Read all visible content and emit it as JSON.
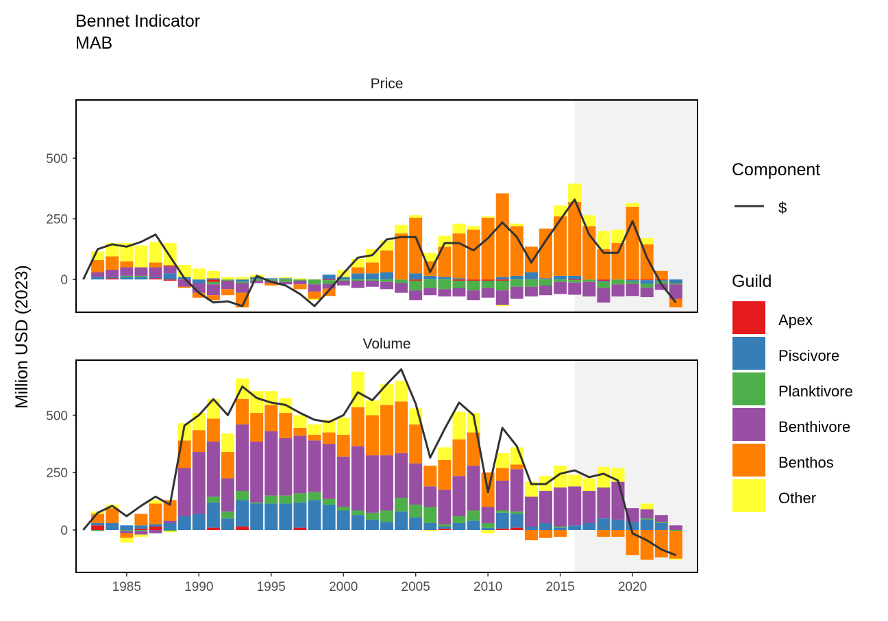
{
  "title": "Bennet Indicator",
  "subtitle": "MAB",
  "colors": {
    "Apex": "#e41a1c",
    "Piscivore": "#377eb8",
    "Planktivore": "#4daf4a",
    "Benthivore": "#984ea3",
    "Benthos": "#ff7f00",
    "Other": "#ffff33",
    "line": "#333333",
    "shade": "#f2f2f2"
  },
  "legend": {
    "component_title": "Component",
    "component_items": [
      "$"
    ],
    "guild_title": "Guild",
    "guild_items": [
      "Apex",
      "Piscivore",
      "Planktivore",
      "Benthivore",
      "Benthos",
      "Other"
    ]
  },
  "chart_data": [
    {
      "type": "bar",
      "panel": "Price",
      "stacked": true,
      "ylabel": "Million USD (2023)",
      "xlim": [
        1981.5,
        2024.5
      ],
      "ylim": [
        -135,
        740
      ],
      "x_ticks": [
        1985,
        1990,
        1995,
        2000,
        2005,
        2010,
        2015,
        2020
      ],
      "y_ticks": [
        0,
        250,
        500
      ],
      "shaded_x": [
        2016,
        2024.5
      ],
      "x": [
        1983,
        1984,
        1985,
        1986,
        1987,
        1988,
        1989,
        1990,
        1991,
        1992,
        1993,
        1994,
        1995,
        1996,
        1997,
        1998,
        1999,
        2000,
        2001,
        2002,
        2003,
        2004,
        2005,
        2006,
        2007,
        2008,
        2009,
        2010,
        2011,
        2012,
        2013,
        2014,
        2015,
        2016,
        2017,
        2018,
        2019,
        2020,
        2021,
        2022,
        2023
      ],
      "series": [
        {
          "name": "Apex",
          "values": [
            0,
            5,
            0,
            0,
            5,
            -5,
            0,
            0,
            -10,
            0,
            0,
            0,
            0,
            0,
            0,
            0,
            -3,
            0,
            0,
            0,
            0,
            0,
            -5,
            0,
            0,
            -5,
            -5,
            -5,
            -5,
            0,
            0,
            0,
            0,
            -3,
            0,
            -5,
            0,
            -3,
            -3,
            -3,
            0
          ]
        },
        {
          "name": "Piscivore",
          "values": [
            10,
            5,
            10,
            10,
            5,
            25,
            10,
            -15,
            5,
            0,
            -10,
            10,
            5,
            5,
            0,
            0,
            20,
            10,
            25,
            25,
            30,
            0,
            25,
            15,
            10,
            5,
            0,
            0,
            10,
            15,
            30,
            5,
            15,
            15,
            0,
            -5,
            0,
            -5,
            -15,
            -5,
            -15
          ]
        },
        {
          "name": "Planktivore",
          "values": [
            0,
            0,
            5,
            5,
            0,
            0,
            0,
            0,
            -10,
            -5,
            -5,
            -5,
            -5,
            -10,
            -5,
            -20,
            -15,
            -5,
            -5,
            -5,
            -10,
            -15,
            -40,
            -35,
            -40,
            -30,
            -40,
            -30,
            -40,
            -30,
            -30,
            -25,
            -10,
            -10,
            -10,
            -25,
            -20,
            -10,
            -15,
            -10,
            -5
          ]
        },
        {
          "name": "Benthivore",
          "values": [
            20,
            30,
            35,
            35,
            40,
            30,
            -30,
            -40,
            -45,
            -35,
            -40,
            -10,
            -10,
            -10,
            -15,
            -30,
            -20,
            -20,
            -30,
            -25,
            -30,
            -40,
            -40,
            -30,
            -30,
            -35,
            -40,
            -40,
            -60,
            -50,
            -40,
            -40,
            -50,
            -50,
            -60,
            -60,
            -50,
            -50,
            -40,
            -25,
            -60
          ]
        },
        {
          "name": "Benthos",
          "values": [
            50,
            55,
            25,
            0,
            20,
            5,
            -5,
            -20,
            -20,
            -25,
            -60,
            0,
            -10,
            0,
            -20,
            -30,
            -30,
            0,
            25,
            45,
            90,
            190,
            230,
            60,
            125,
            185,
            205,
            255,
            345,
            205,
            105,
            205,
            245,
            305,
            220,
            125,
            150,
            300,
            145,
            35,
            -35
          ]
        },
        {
          "name": "Other",
          "values": [
            35,
            55,
            75,
            90,
            85,
            90,
            50,
            45,
            30,
            10,
            10,
            10,
            0,
            5,
            5,
            -5,
            0,
            30,
            35,
            55,
            40,
            35,
            10,
            35,
            45,
            40,
            15,
            5,
            -5,
            10,
            0,
            0,
            45,
            75,
            45,
            75,
            55,
            15,
            25,
            0,
            0
          ]
        }
      ],
      "line": {
        "name": "$",
        "x": [
          1982,
          1983,
          1984,
          1985,
          1986,
          1987,
          1988,
          1989,
          1990,
          1991,
          1992,
          1993,
          1994,
          1995,
          1996,
          1997,
          1998,
          1999,
          2000,
          2001,
          2002,
          2003,
          2004,
          2005,
          2006,
          2007,
          2008,
          2009,
          2010,
          2011,
          2012,
          2013,
          2014,
          2015,
          2016,
          2017,
          2018,
          2019,
          2020,
          2021,
          2022,
          2023
        ],
        "values": [
          0,
          125,
          145,
          135,
          155,
          185,
          95,
          5,
          -55,
          -95,
          -90,
          -110,
          15,
          -10,
          -25,
          -60,
          -110,
          -45,
          25,
          90,
          100,
          165,
          175,
          175,
          30,
          150,
          150,
          120,
          170,
          235,
          175,
          70,
          160,
          245,
          330,
          185,
          110,
          110,
          240,
          90,
          -20,
          -95
        ]
      }
    },
    {
      "type": "bar",
      "panel": "Volume",
      "stacked": true,
      "ylabel": "Million USD (2023)",
      "xlim": [
        1981.5,
        2024.5
      ],
      "ylim": [
        -185,
        740
      ],
      "x_ticks": [
        1985,
        1990,
        1995,
        2000,
        2005,
        2010,
        2015,
        2020
      ],
      "y_ticks": [
        0,
        250,
        500
      ],
      "shaded_x": [
        2016,
        2024.5
      ],
      "x": [
        1983,
        1984,
        1985,
        1986,
        1987,
        1988,
        1989,
        1990,
        1991,
        1992,
        1993,
        1994,
        1995,
        1996,
        1997,
        1998,
        1999,
        2000,
        2001,
        2002,
        2003,
        2004,
        2005,
        2006,
        2007,
        2008,
        2009,
        2010,
        2011,
        2012,
        2013,
        2014,
        2015,
        2016,
        2017,
        2018,
        2019,
        2020,
        2021,
        2022,
        2023
      ],
      "series": [
        {
          "name": "Apex",
          "values": [
            20,
            0,
            0,
            5,
            15,
            0,
            0,
            0,
            10,
            0,
            15,
            0,
            0,
            0,
            10,
            0,
            0,
            0,
            0,
            0,
            0,
            0,
            0,
            0,
            5,
            0,
            0,
            0,
            5,
            10,
            0,
            0,
            0,
            0,
            0,
            0,
            0,
            0,
            0,
            0,
            0
          ]
        },
        {
          "name": "Piscivore",
          "values": [
            10,
            30,
            20,
            15,
            10,
            30,
            60,
            70,
            110,
            50,
            115,
            115,
            115,
            115,
            110,
            130,
            110,
            85,
            65,
            45,
            35,
            80,
            55,
            30,
            10,
            30,
            40,
            10,
            70,
            60,
            15,
            30,
            10,
            20,
            30,
            50,
            45,
            35,
            45,
            30,
            0
          ]
        },
        {
          "name": "Planktivore",
          "values": [
            -5,
            0,
            -5,
            -5,
            0,
            -5,
            0,
            0,
            25,
            30,
            40,
            5,
            35,
            35,
            40,
            35,
            25,
            15,
            20,
            30,
            50,
            60,
            55,
            70,
            10,
            30,
            45,
            20,
            10,
            10,
            0,
            0,
            5,
            0,
            0,
            0,
            0,
            0,
            5,
            5,
            -5
          ]
        },
        {
          "name": "Benthivore",
          "values": [
            0,
            0,
            -10,
            -15,
            -15,
            10,
            210,
            270,
            240,
            145,
            290,
            265,
            280,
            250,
            250,
            225,
            240,
            220,
            280,
            250,
            240,
            195,
            180,
            90,
            150,
            175,
            195,
            70,
            130,
            185,
            130,
            140,
            170,
            170,
            140,
            135,
            165,
            60,
            40,
            30,
            20
          ]
        },
        {
          "name": "Benthos",
          "values": [
            40,
            65,
            -20,
            50,
            90,
            90,
            120,
            95,
            100,
            115,
            110,
            125,
            115,
            110,
            35,
            25,
            50,
            95,
            170,
            175,
            220,
            225,
            170,
            90,
            130,
            160,
            145,
            150,
            55,
            20,
            -45,
            -35,
            -30,
            0,
            0,
            -30,
            -30,
            -110,
            -130,
            -120,
            -120
          ]
        },
        {
          "name": "Other",
          "values": [
            10,
            15,
            -20,
            -10,
            15,
            -5,
            75,
            75,
            85,
            80,
            90,
            95,
            60,
            65,
            55,
            45,
            55,
            75,
            155,
            65,
            90,
            90,
            70,
            -5,
            55,
            120,
            85,
            -15,
            65,
            75,
            65,
            65,
            95,
            50,
            55,
            90,
            60,
            0,
            25,
            0,
            -5
          ]
        }
      ],
      "line": {
        "name": "$",
        "x": [
          1982,
          1983,
          1984,
          1985,
          1986,
          1987,
          1988,
          1989,
          1990,
          1991,
          1992,
          1993,
          1994,
          1995,
          1996,
          1997,
          1998,
          1999,
          2000,
          2001,
          2002,
          2003,
          2004,
          2005,
          2006,
          2007,
          2008,
          2009,
          2010,
          2011,
          2012,
          2013,
          2014,
          2015,
          2016,
          2017,
          2018,
          2019,
          2020,
          2021,
          2022,
          2023
        ],
        "values": [
          0,
          75,
          105,
          60,
          105,
          145,
          110,
          455,
          500,
          570,
          500,
          625,
          575,
          555,
          545,
          510,
          480,
          470,
          500,
          600,
          565,
          635,
          700,
          550,
          315,
          440,
          555,
          500,
          165,
          445,
          365,
          200,
          200,
          245,
          260,
          230,
          245,
          215,
          -15,
          -45,
          -85,
          -110
        ]
      }
    }
  ]
}
